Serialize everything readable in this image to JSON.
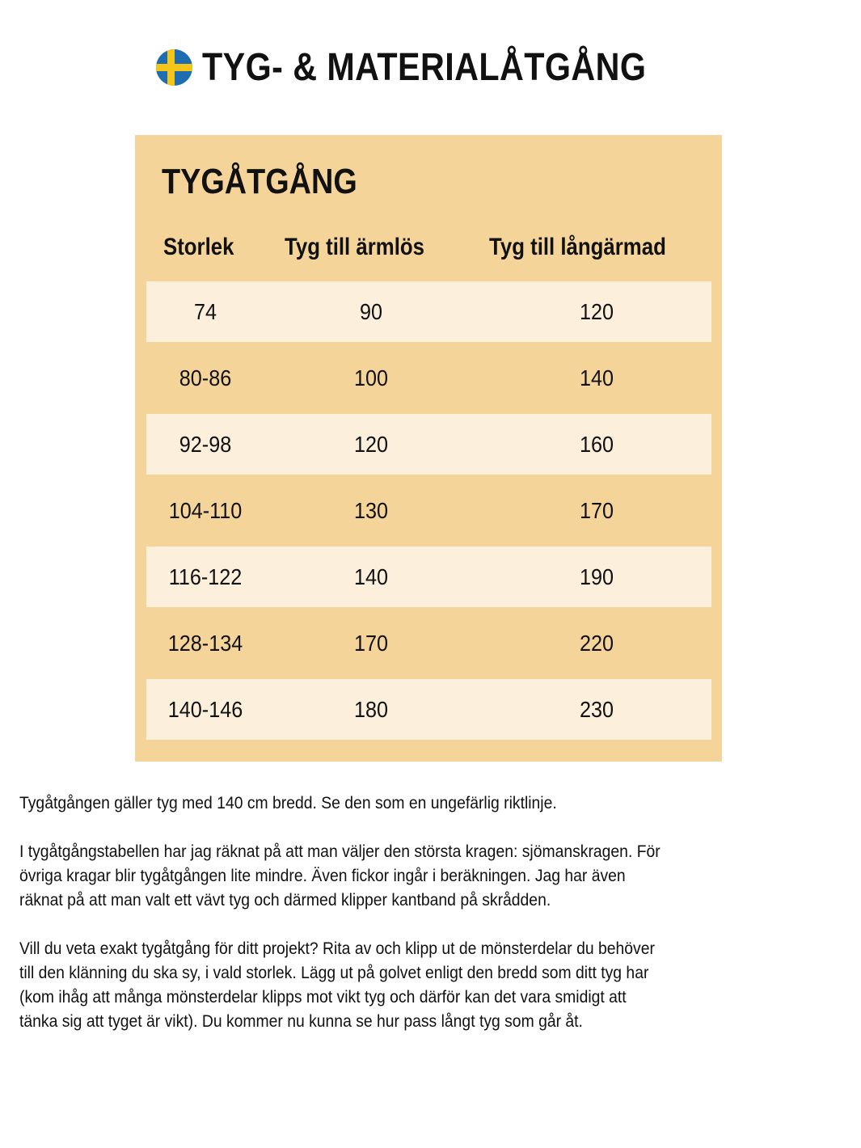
{
  "header": {
    "title": "TYG- & MATERIALÅTGÅNG",
    "flag_icon": "sweden-flag-icon",
    "flag_colors": {
      "blue": "#1f6cb0",
      "yellow": "#f5c518"
    }
  },
  "table": {
    "title": "TYGÅTGÅNG",
    "columns": [
      "Storlek",
      "Tyg  till ärmlös",
      "Tyg till långärmad"
    ],
    "rows": [
      [
        "74",
        "90",
        "120"
      ],
      [
        "80-86",
        "100",
        "140"
      ],
      [
        "92-98",
        "120",
        "160"
      ],
      [
        "104-110",
        "130",
        "170"
      ],
      [
        "116-122",
        "140",
        "190"
      ],
      [
        "128-134",
        "170",
        "220"
      ],
      [
        "140-146",
        "180",
        "230"
      ]
    ],
    "colors": {
      "background": "#f5d49a",
      "light_row": "#fcf0dc"
    }
  },
  "paragraphs": [
    [
      "Tygåtgången gäller tyg med 140 cm bredd. Se den som en ungefärlig riktlinje."
    ],
    [
      "I tygåtgångstabellen har jag räknat på att man väljer den största kragen: sjömanskragen. För",
      "övriga kragar blir tygåtgången lite mindre. Även fickor ingår i beräkningen. Jag har även",
      "räknat på att man valt ett vävt tyg och därmed klipper kantband på skrådden."
    ],
    [
      "Vill du veta exakt tygåtgång för ditt projekt? Rita av och klipp ut de mönsterdelar du behöver",
      "till den klänning du ska sy, i vald storlek. Lägg ut på golvet enligt den bredd som ditt tyg har",
      "(kom ihåg att många mönsterdelar klipps mot vikt tyg och därför kan det vara smidigt att",
      "tänka sig att tyget är vikt). Du kommer nu kunna se hur pass långt tyg som går åt."
    ]
  ]
}
